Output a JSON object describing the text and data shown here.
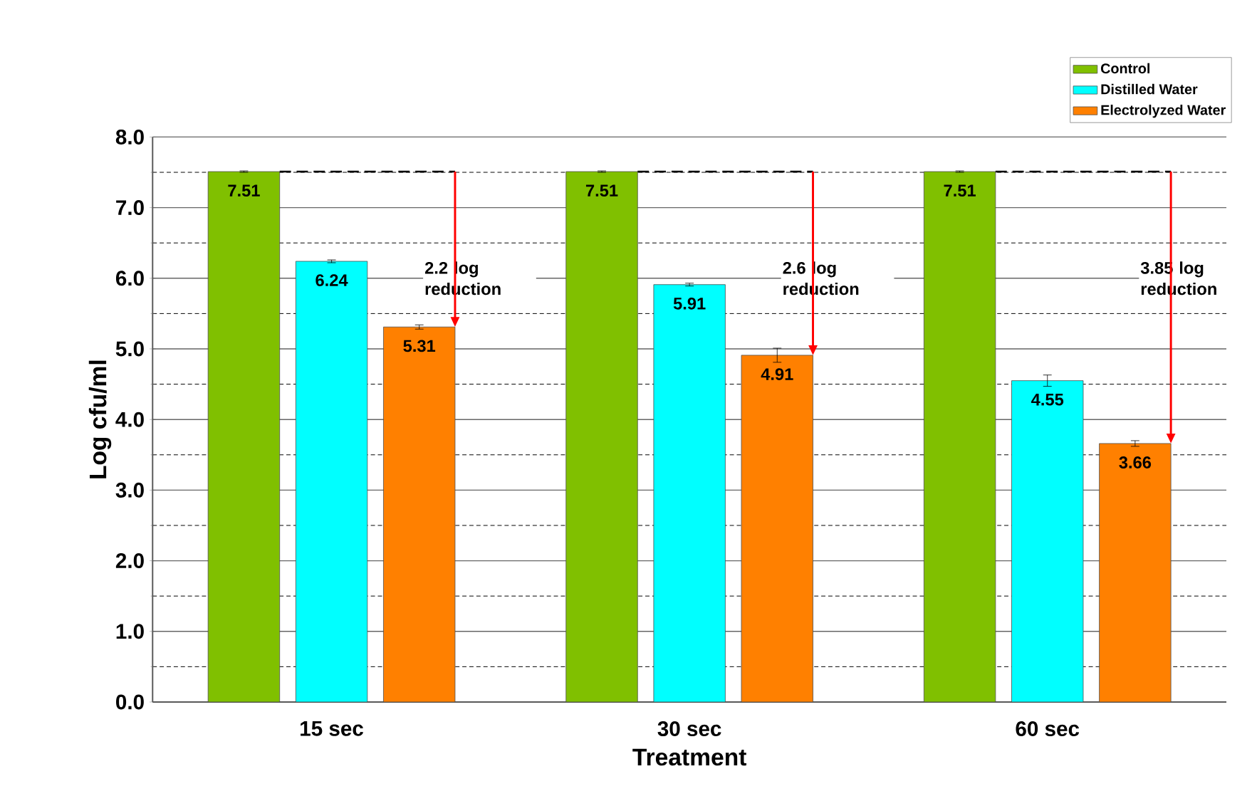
{
  "chart_data": {
    "type": "bar",
    "xlabel": "Treatment",
    "ylabel": "Log cfu/ml",
    "categories": [
      "15 sec",
      "30 sec",
      "60 sec"
    ],
    "series": [
      {
        "name": "Control",
        "color": "#80c000",
        "values": [
          7.51,
          7.51,
          7.51
        ],
        "errors": [
          0.01,
          0.01,
          0.01
        ]
      },
      {
        "name": "Distilled Water",
        "color": "#00ffff",
        "values": [
          6.24,
          5.91,
          4.55
        ],
        "errors": [
          0.02,
          0.02,
          0.08
        ]
      },
      {
        "name": "Electrolyzed Water",
        "color": "#ff8000",
        "values": [
          5.31,
          4.91,
          3.66
        ],
        "errors": [
          0.03,
          0.1,
          0.04
        ]
      }
    ],
    "ylim": [
      0,
      8
    ],
    "yticks": [
      {
        "value": 0,
        "label": "0.0"
      },
      {
        "value": 1,
        "label": "1.0"
      },
      {
        "value": 2,
        "label": "2.0"
      },
      {
        "value": 3,
        "label": "3.0"
      },
      {
        "value": 4,
        "label": "4.0"
      },
      {
        "value": 5,
        "label": "5.0"
      },
      {
        "value": 6,
        "label": "6.0"
      },
      {
        "value": 7,
        "label": "7.0"
      },
      {
        "value": 8,
        "label": "8.0"
      }
    ],
    "grid": "y",
    "legend": "top right",
    "data_labels": true,
    "annotations": [
      "2.2 log reduction",
      "2.6 log reduction",
      "3.85 log reduction"
    ]
  }
}
